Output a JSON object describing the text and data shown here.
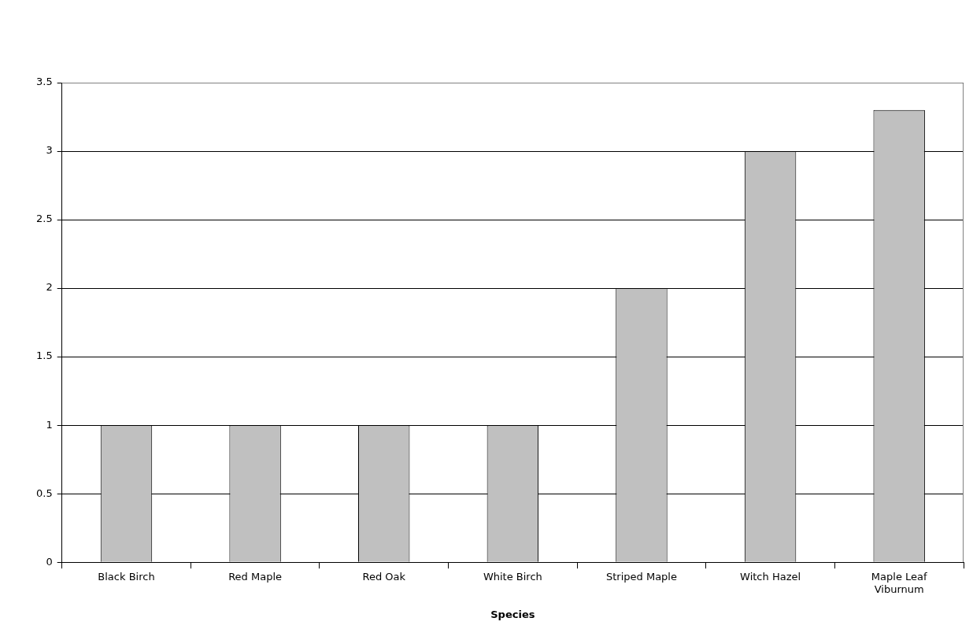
{
  "chart_data": {
    "type": "bar",
    "xlabel": "Species",
    "categories": [
      "Black Birch",
      "Red Maple",
      "Red Oak",
      "White Birch",
      "Striped Maple",
      "Witch Hazel",
      "Maple Leaf Viburnum"
    ],
    "values": [
      1,
      1,
      1,
      1,
      2,
      3,
      3.3
    ],
    "color": "#c0c0c0",
    "ylim": [
      0,
      3.5
    ],
    "yticks": [
      0,
      0.5,
      1,
      1.5,
      2,
      2.5,
      3,
      3.5
    ],
    "grid": "y",
    "legend": false
  }
}
